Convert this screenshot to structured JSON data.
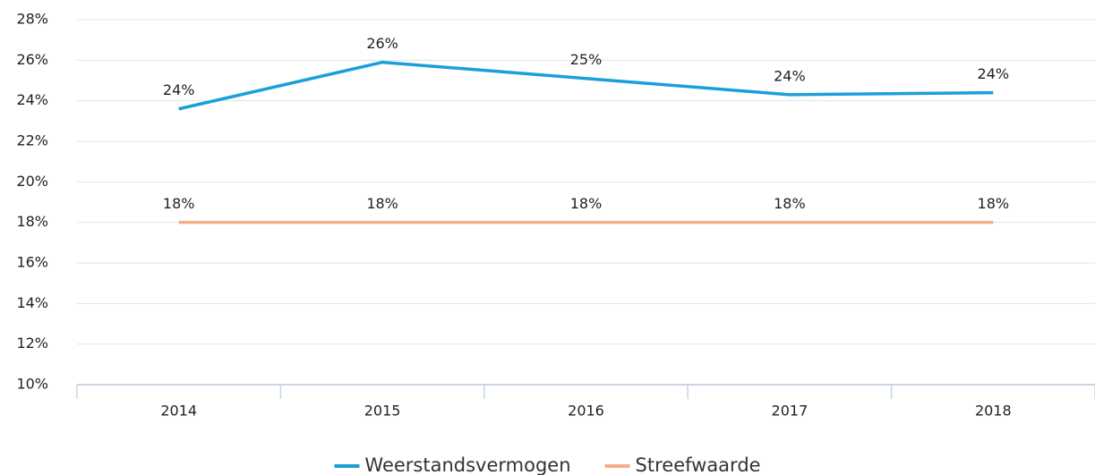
{
  "chart_data": {
    "type": "line",
    "categories": [
      "2014",
      "2015",
      "2016",
      "2017",
      "2018"
    ],
    "series": [
      {
        "name": "Weerstandsvermogen",
        "color": "#1a9fd9",
        "values": [
          23.6,
          25.9,
          25.1,
          24.3,
          24.4
        ],
        "value_labels": [
          "24%",
          "26%",
          "25%",
          "24%",
          "24%"
        ]
      },
      {
        "name": "Streefwaarde",
        "color": "#f2b08a",
        "values": [
          18,
          18,
          18,
          18,
          18
        ],
        "value_labels": [
          "18%",
          "18%",
          "18%",
          "18%",
          "18%"
        ]
      }
    ],
    "ylim": [
      10,
      28
    ],
    "yticks": [
      {
        "value": 10,
        "label": "10%"
      },
      {
        "value": 12,
        "label": "12%"
      },
      {
        "value": 14,
        "label": "14%"
      },
      {
        "value": 16,
        "label": "16%"
      },
      {
        "value": 18,
        "label": "18%"
      },
      {
        "value": 20,
        "label": "20%"
      },
      {
        "value": 22,
        "label": "22%"
      },
      {
        "value": 24,
        "label": "24%"
      },
      {
        "value": 26,
        "label": "26%"
      },
      {
        "value": 28,
        "label": "28%"
      }
    ],
    "grid": true,
    "legend": "bottom"
  }
}
